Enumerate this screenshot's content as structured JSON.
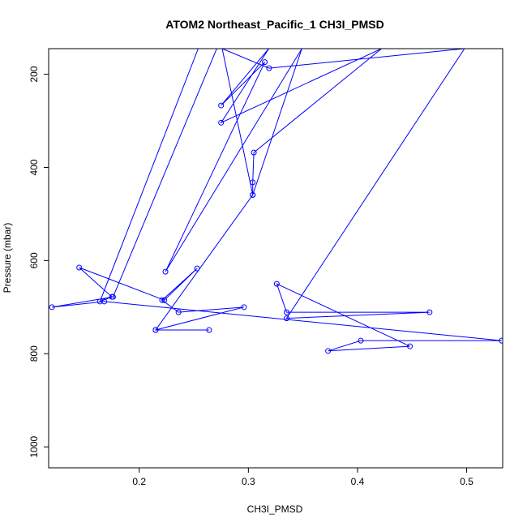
{
  "chart_data": {
    "type": "line",
    "title": "ATOM2 Northeast_Pacific_1 CH3I_PMSD",
    "xlabel": "CH3I_PMSD",
    "ylabel": "Pressure (mbar)",
    "xlim": [
      0.117,
      0.533
    ],
    "ylim": [
      1045,
      145
    ],
    "y_reversed": true,
    "grid": false,
    "legend": "none",
    "x_ticks": [
      0.2,
      0.3,
      0.4,
      0.5
    ],
    "x_tick_labels": [
      "0.2",
      "0.3",
      "0.4",
      "0.5"
    ],
    "y_ticks": [
      200,
      400,
      600,
      800,
      1000
    ],
    "y_tick_labels": [
      "200",
      "400",
      "600",
      "800",
      "1000"
    ],
    "series": [
      {
        "color": "#0000ff",
        "marker": "open-circle",
        "x": [
          0.254,
          0.164,
          0.175,
          0.145,
          0.223,
          0.253,
          0.221,
          0.236,
          0.296,
          0.215,
          0.264,
          0.215,
          0.304,
          0.304,
          0.305,
          0.422,
          0.275,
          0.319,
          0.275,
          0.315,
          0.224,
          0.349,
          0.304,
          0.276,
          0.319,
          0.498,
          0.335,
          0.466,
          0.335,
          0.326,
          0.448,
          0.373,
          0.403,
          0.532,
          0.168,
          0.12,
          0.176,
          0.271
        ],
        "y": [
          145,
          688,
          678,
          615,
          685,
          617,
          685,
          711,
          700,
          749,
          749,
          749,
          459,
          432,
          368,
          145,
          304,
          144,
          267,
          174,
          624,
          145,
          459,
          145,
          187,
          145,
          724,
          711,
          711,
          650,
          784,
          794,
          772,
          772,
          688,
          700,
          678,
          145
        ]
      }
    ]
  }
}
